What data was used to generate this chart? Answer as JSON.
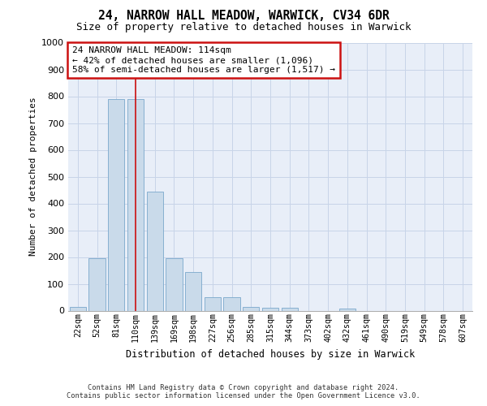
{
  "title": "24, NARROW HALL MEADOW, WARWICK, CV34 6DR",
  "subtitle": "Size of property relative to detached houses in Warwick",
  "xlabel": "Distribution of detached houses by size in Warwick",
  "ylabel": "Number of detached properties",
  "bar_labels": [
    "22sqm",
    "52sqm",
    "81sqm",
    "110sqm",
    "139sqm",
    "169sqm",
    "198sqm",
    "227sqm",
    "256sqm",
    "285sqm",
    "315sqm",
    "344sqm",
    "373sqm",
    "402sqm",
    "432sqm",
    "461sqm",
    "490sqm",
    "519sqm",
    "549sqm",
    "578sqm",
    "607sqm"
  ],
  "bar_values": [
    15,
    195,
    790,
    790,
    445,
    195,
    145,
    50,
    50,
    15,
    12,
    10,
    0,
    0,
    8,
    0,
    0,
    0,
    0,
    0,
    0
  ],
  "bar_color": "#c9daea",
  "bar_edge_color": "#7aa8cc",
  "property_line_x": 3.0,
  "annotation_line1": "24 NARROW HALL MEADOW: 114sqm",
  "annotation_line2": "← 42% of detached houses are smaller (1,096)",
  "annotation_line3": "58% of semi-detached houses are larger (1,517) →",
  "annotation_box_color": "#ffffff",
  "annotation_box_edge_color": "#cc1111",
  "ylim": [
    0,
    1000
  ],
  "yticks": [
    0,
    100,
    200,
    300,
    400,
    500,
    600,
    700,
    800,
    900,
    1000
  ],
  "grid_color": "#c8d4e8",
  "background_color": "#e8eef8",
  "title_fontsize": 10.5,
  "subtitle_fontsize": 9,
  "footnote1": "Contains HM Land Registry data © Crown copyright and database right 2024.",
  "footnote2": "Contains public sector information licensed under the Open Government Licence v3.0."
}
